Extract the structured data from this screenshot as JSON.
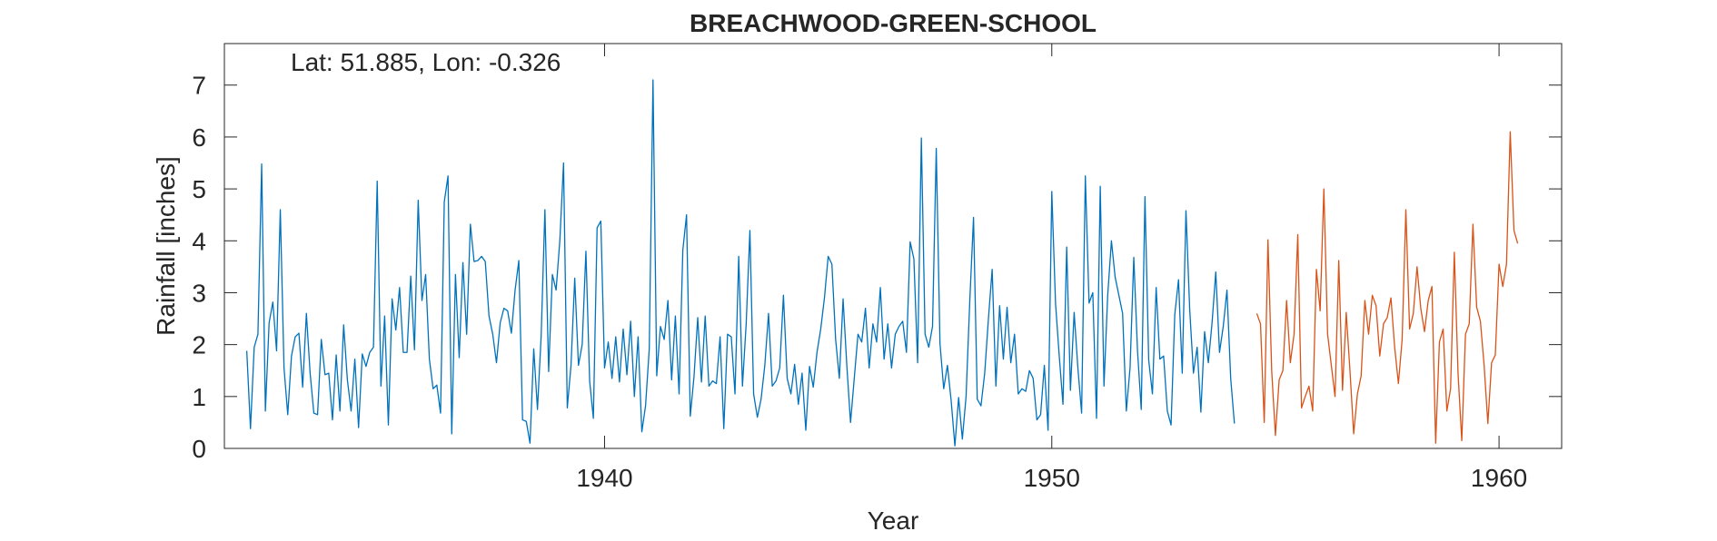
{
  "chart_data": {
    "type": "line",
    "title": "BREACHWOOD-GREEN-SCHOOL",
    "annotation": "Lat: 51.885, Lon: -0.326",
    "xlabel": "Year",
    "ylabel": "Rainfall [inches]",
    "xlim": [
      1931.5,
      1961.4
    ],
    "ylim": [
      0,
      7.8
    ],
    "xticks": [
      1940,
      1950,
      1960
    ],
    "yticks": [
      0,
      1,
      2,
      3,
      4,
      5,
      6,
      7
    ],
    "grid": false,
    "box": true,
    "colors": {
      "series1": "#0072BD",
      "series2": "#D95319",
      "axis": "#262626"
    },
    "series": [
      {
        "x_start": 1932.0,
        "x_step": 0.08333333,
        "values": [
          1.88,
          0.38,
          1.95,
          2.2,
          5.48,
          0.72,
          2.42,
          2.82,
          1.88,
          4.6,
          1.55,
          0.65,
          1.78,
          2.15,
          2.22,
          1.18,
          2.6,
          1.45,
          0.68,
          0.65,
          2.1,
          1.42,
          1.45,
          0.55,
          1.8,
          0.72,
          2.38,
          1.32,
          0.72,
          1.72,
          0.4,
          1.82,
          1.58,
          1.85,
          1.95,
          5.15,
          1.2,
          2.55,
          0.45,
          2.88,
          2.28,
          3.1,
          1.85,
          1.85,
          3.32,
          1.9,
          4.78,
          2.85,
          3.35,
          1.72,
          1.15,
          1.22,
          0.68,
          4.75,
          5.25,
          0.28,
          3.35,
          1.75,
          3.58,
          2.2,
          4.32,
          3.6,
          3.62,
          3.7,
          3.6,
          2.55,
          2.2,
          1.65,
          2.42,
          2.7,
          2.65,
          2.22,
          3.05,
          3.62,
          0.55,
          0.52,
          0.1,
          1.92,
          0.75,
          2.18,
          4.6,
          1.48,
          3.35,
          3.05,
          4.0,
          5.5,
          0.78,
          1.6,
          3.28,
          1.6,
          2.0,
          3.8,
          1.3,
          0.58,
          4.25,
          4.38,
          1.55,
          2.05,
          1.35,
          2.15,
          1.28,
          2.3,
          1.42,
          2.45,
          1.0,
          2.15,
          0.32,
          0.82,
          1.92,
          7.1,
          1.4,
          2.35,
          2.1,
          2.85,
          1.32,
          2.55,
          1.05,
          3.82,
          4.5,
          0.62,
          1.38,
          2.52,
          1.28,
          2.55,
          1.2,
          1.3,
          1.25,
          2.15,
          0.38,
          2.2,
          2.15,
          1.05,
          3.7,
          1.2,
          2.4,
          4.2,
          1.05,
          0.6,
          0.95,
          1.6,
          2.6,
          1.2,
          1.3,
          1.55,
          2.95,
          1.35,
          1.05,
          1.62,
          0.85,
          1.45,
          0.35,
          1.58,
          1.18,
          1.85,
          2.3,
          2.9,
          3.7,
          3.55,
          2.1,
          1.35,
          2.88,
          1.6,
          0.5,
          1.35,
          2.2,
          2.05,
          2.7,
          1.55,
          2.4,
          2.05,
          3.1,
          1.72,
          2.4,
          1.55,
          2.2,
          2.35,
          2.45,
          1.85,
          3.98,
          3.65,
          1.65,
          5.98,
          2.2,
          1.95,
          2.35,
          5.78,
          2.02,
          1.15,
          1.6,
          0.92,
          0.05,
          0.98,
          0.18,
          1.0,
          2.85,
          4.45,
          0.95,
          0.82,
          1.45,
          2.5,
          3.45,
          1.2,
          2.75,
          1.72,
          2.72,
          1.65,
          2.2,
          1.05,
          1.15,
          1.1,
          1.5,
          1.35,
          0.55,
          0.65,
          1.6,
          0.35,
          4.95,
          2.8,
          1.78,
          0.85,
          3.88,
          1.12,
          2.62,
          1.55,
          0.68,
          5.25,
          2.8,
          3.0,
          0.58,
          5.05,
          1.2,
          2.95,
          4.0,
          3.3,
          2.95,
          2.6,
          0.72,
          1.55,
          3.68,
          1.88,
          0.75,
          4.85,
          1.7,
          1.05,
          3.1,
          1.72,
          1.78,
          0.72,
          0.45,
          2.58,
          3.25,
          1.45,
          4.58,
          2.68,
          1.45,
          1.95,
          0.7,
          2.25,
          1.65,
          2.42,
          3.4,
          1.85,
          2.35,
          3.05,
          1.35,
          0.48
        ]
      },
      {
        "x_start": 1954.58333,
        "x_step": 0.08333333,
        "values": [
          2.6,
          2.4,
          0.5,
          4.02,
          1.5,
          0.25,
          1.32,
          1.5,
          2.85,
          1.65,
          2.2,
          4.12,
          0.78,
          1.0,
          1.2,
          0.72,
          3.45,
          2.65,
          5.0,
          2.2,
          1.6,
          1.0,
          3.62,
          1.12,
          2.62,
          1.5,
          0.28,
          1.05,
          1.4,
          2.85,
          2.2,
          2.95,
          2.75,
          1.78,
          2.4,
          2.52,
          2.9,
          1.95,
          1.25,
          2.1,
          4.6,
          2.3,
          2.6,
          3.5,
          2.7,
          2.25,
          2.85,
          3.12,
          0.1,
          2.05,
          2.3,
          0.72,
          1.15,
          3.78,
          1.45,
          0.15,
          2.2,
          2.4,
          4.32,
          2.72,
          2.45,
          1.6,
          0.48,
          1.65,
          1.8,
          3.55,
          3.12,
          3.55,
          6.1,
          4.2,
          3.95
        ]
      }
    ]
  }
}
